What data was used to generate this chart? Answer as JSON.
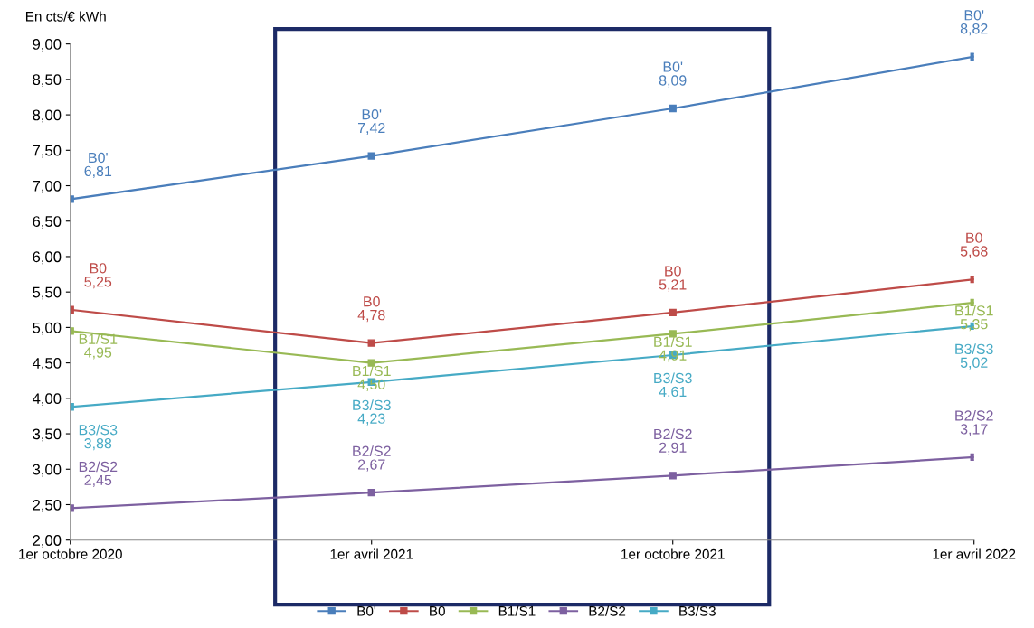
{
  "chart_data": {
    "type": "line",
    "ylabel": "En cts/€ kWh",
    "categories": [
      "1er octobre 2020",
      "1er avril 2021",
      "1er octobre 2021",
      "1er avril 2022"
    ],
    "series": [
      {
        "name": "B0'",
        "color": "#4a7ebb",
        "values": [
          6.81,
          7.42,
          8.09,
          8.82
        ],
        "value_labels": [
          "6,81",
          "7,42",
          "8,09",
          "8,82"
        ]
      },
      {
        "name": "B0",
        "color": "#be4b48",
        "values": [
          5.25,
          4.78,
          5.21,
          5.68
        ],
        "value_labels": [
          "5,25",
          "4,78",
          "5,21",
          "5,68"
        ]
      },
      {
        "name": "B1/S1",
        "color": "#98b954",
        "values": [
          4.95,
          4.5,
          4.91,
          5.35
        ],
        "value_labels": [
          "4,95",
          "4,50",
          "4,91",
          "5,35"
        ]
      },
      {
        "name": "B2/S2",
        "color": "#7d60a0",
        "values": [
          2.45,
          2.67,
          2.91,
          3.17
        ],
        "value_labels": [
          "2,45",
          "2,67",
          "2,91",
          "3,17"
        ]
      },
      {
        "name": "B3/S3",
        "color": "#46aac5",
        "values": [
          3.88,
          4.23,
          4.61,
          5.02
        ],
        "value_labels": [
          "3,88",
          "4,23",
          "4,61",
          "5,02"
        ]
      }
    ],
    "ylim": [
      2,
      9
    ],
    "yticks": [
      {
        "value": 2,
        "label": "2,00"
      },
      {
        "value": 2.5,
        "label": "2,50"
      },
      {
        "value": 3,
        "label": "3,00"
      },
      {
        "value": 3.5,
        "label": "3,50"
      },
      {
        "value": 4,
        "label": "4,00"
      },
      {
        "value": 4.5,
        "label": "4,50"
      },
      {
        "value": 5,
        "label": "5,00"
      },
      {
        "value": 5.5,
        "label": "5,50"
      },
      {
        "value": 6,
        "label": "6,00"
      },
      {
        "value": 6.5,
        "label": "6,50"
      },
      {
        "value": 7,
        "label": "7,00"
      },
      {
        "value": 7.5,
        "label": "7,50"
      },
      {
        "value": 8,
        "label": "8,00"
      },
      {
        "value": 8.5,
        "label": "8,50"
      },
      {
        "value": 9,
        "label": "9,00"
      }
    ],
    "grid": false,
    "legend": "bottom",
    "marker": "square",
    "line_style": "solid"
  }
}
